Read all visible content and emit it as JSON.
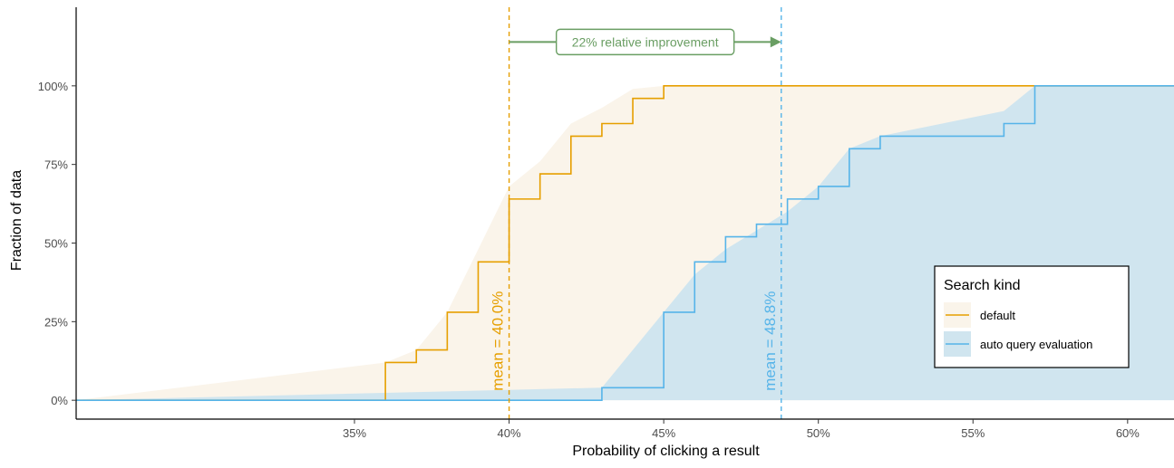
{
  "chart_data": {
    "type": "line",
    "subtype": "ecdf-step",
    "title": "",
    "xlabel": "Probability of clicking a result",
    "ylabel": "Fraction of data",
    "xlim": [
      0.26,
      0.615
    ],
    "ylim": [
      -0.06,
      1.25
    ],
    "x_ticks": [
      0.35,
      0.4,
      0.45,
      0.5,
      0.55,
      0.6
    ],
    "x_tick_labels": [
      "35%",
      "40%",
      "45%",
      "50%",
      "55%",
      "60%"
    ],
    "y_ticks": [
      0,
      0.25,
      0.5,
      0.75,
      1.0
    ],
    "y_tick_labels": [
      "0%",
      "25%",
      "50%",
      "75%",
      "100%"
    ],
    "grid": false,
    "legend": {
      "title": "Search kind",
      "position": "right",
      "entries": [
        "default",
        "auto query evaluation"
      ]
    },
    "series": [
      {
        "name": "default",
        "color": "#E69F00",
        "fill": "#FAF4EA",
        "mean": 0.4,
        "mean_label": "mean = 40.0%",
        "steps": [
          [
            0.36,
            0.12
          ],
          [
            0.37,
            0.16
          ],
          [
            0.38,
            0.28
          ],
          [
            0.39,
            0.44
          ],
          [
            0.4,
            0.64
          ],
          [
            0.41,
            0.72
          ],
          [
            0.42,
            0.84
          ],
          [
            0.43,
            0.88
          ],
          [
            0.44,
            0.96
          ],
          [
            0.45,
            1.0
          ]
        ],
        "band": [
          [
            0.26,
            0.0
          ],
          [
            0.36,
            0.12
          ],
          [
            0.37,
            0.16
          ],
          [
            0.38,
            0.28
          ],
          [
            0.39,
            0.48
          ],
          [
            0.4,
            0.68
          ],
          [
            0.41,
            0.76
          ],
          [
            0.42,
            0.88
          ],
          [
            0.43,
            0.93
          ],
          [
            0.44,
            0.99
          ],
          [
            0.45,
            1.0
          ],
          [
            0.57,
            1.0
          ]
        ]
      },
      {
        "name": "auto query evaluation",
        "color": "#56B4E9",
        "fill": "#D0E5EF",
        "mean": 0.488,
        "mean_label": "mean = 48.8%",
        "steps": [
          [
            0.43,
            0.04
          ],
          [
            0.45,
            0.28
          ],
          [
            0.46,
            0.44
          ],
          [
            0.47,
            0.52
          ],
          [
            0.48,
            0.56
          ],
          [
            0.49,
            0.64
          ],
          [
            0.5,
            0.68
          ],
          [
            0.51,
            0.8
          ],
          [
            0.52,
            0.84
          ],
          [
            0.56,
            0.88
          ],
          [
            0.57,
            1.0
          ]
        ],
        "band": [
          [
            0.26,
            0.0
          ],
          [
            0.43,
            0.04
          ],
          [
            0.45,
            0.28
          ],
          [
            0.46,
            0.4
          ],
          [
            0.47,
            0.48
          ],
          [
            0.48,
            0.54
          ],
          [
            0.49,
            0.6
          ],
          [
            0.5,
            0.68
          ],
          [
            0.51,
            0.8
          ],
          [
            0.52,
            0.84
          ],
          [
            0.56,
            0.92
          ],
          [
            0.57,
            1.0
          ],
          [
            0.615,
            1.0
          ]
        ]
      }
    ],
    "annotation": {
      "text": "22% relative improvement",
      "color": "#6A9E63",
      "from_x": 0.4,
      "to_x": 0.488,
      "y": 1.2
    }
  }
}
